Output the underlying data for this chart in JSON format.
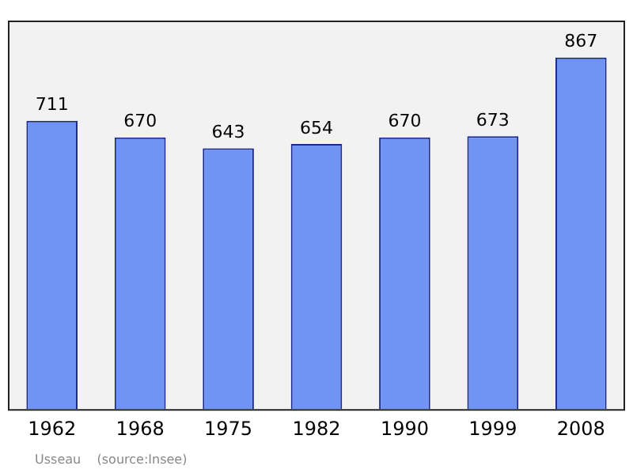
{
  "chart_data": {
    "type": "bar",
    "categories": [
      "1962",
      "1968",
      "1975",
      "1982",
      "1990",
      "1999",
      "2008"
    ],
    "values": [
      711,
      670,
      643,
      654,
      670,
      673,
      867
    ],
    "color": "#6f94f4",
    "data_labels": true,
    "grid": false,
    "legend": false,
    "annotations": [
      "Usseau    (source:Insee)"
    ]
  }
}
